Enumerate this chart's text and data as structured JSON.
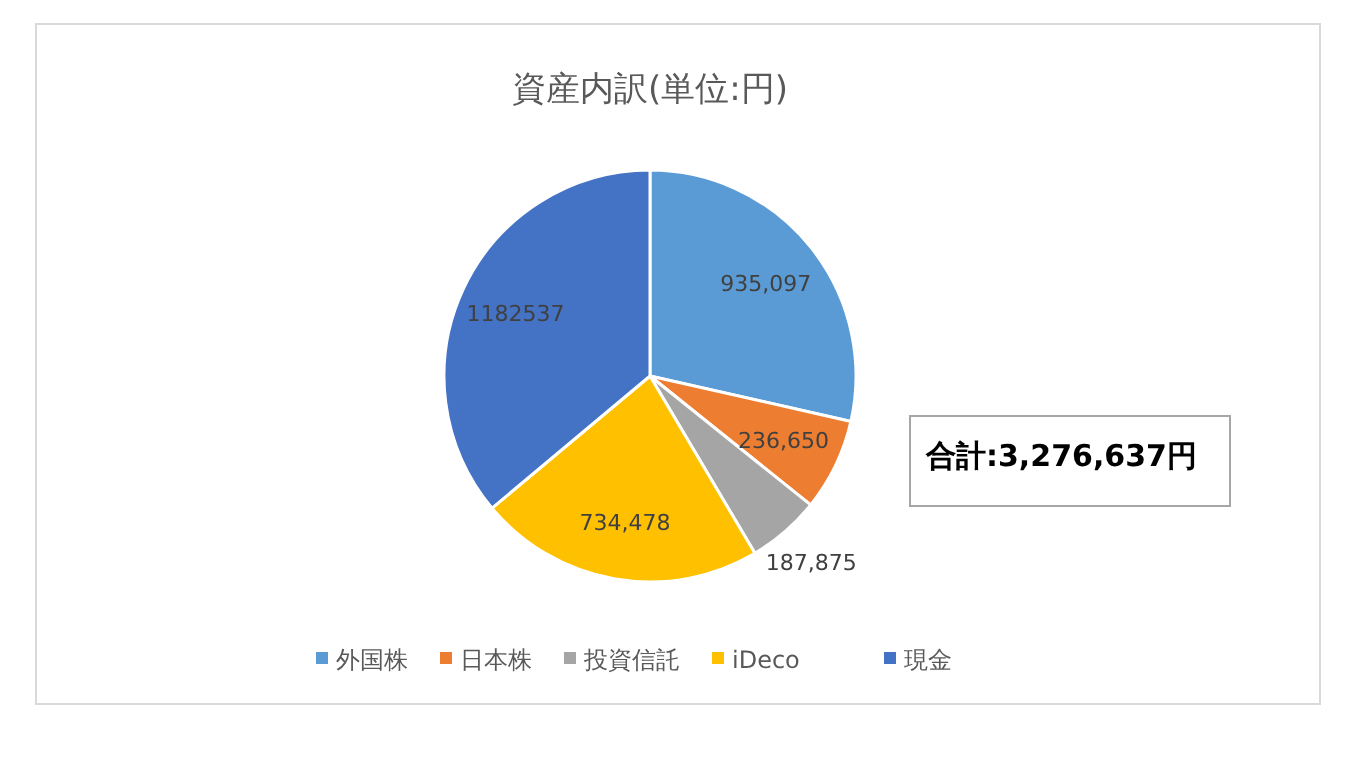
{
  "chart_data": {
    "type": "pie",
    "title": "資産内訳(単位:円)",
    "categories": [
      "外国株",
      "日本株",
      "投資信託",
      "iDeco",
      "現金"
    ],
    "values": [
      935097,
      236650,
      187875,
      734478,
      1182537
    ],
    "colors": [
      "#5b9bd5",
      "#ed7d31",
      "#a5a5a5",
      "#ffc000",
      "#4472c4"
    ],
    "value_labels": [
      "935,097",
      "236,650",
      "187,875",
      "734,478",
      "1182537"
    ],
    "legend": "bottom",
    "annotations": [
      "合計:3,276,637円"
    ]
  }
}
